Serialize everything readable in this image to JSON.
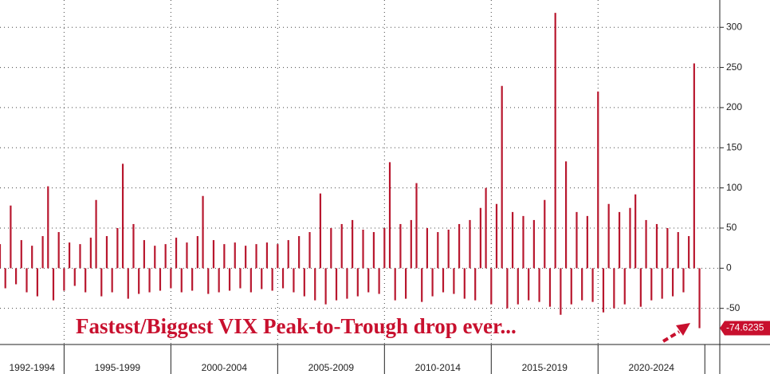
{
  "chart_data": {
    "type": "bar",
    "color": "#b8172e",
    "grid": true,
    "axis_side": "right",
    "annotation": "Fastest/Biggest VIX Peak-to-Trough drop ever...",
    "xlim": [
      1992,
      2025.7
    ],
    "ylim": [
      -95,
      334
    ],
    "yticks": [
      300,
      250,
      200,
      150,
      100,
      50,
      0,
      -50
    ],
    "periods": [
      {
        "label": "1992-1994",
        "start": 1992,
        "end": 1995
      },
      {
        "label": "1995-1999",
        "start": 1995,
        "end": 2000
      },
      {
        "label": "2000-2004",
        "start": 2000,
        "end": 2005
      },
      {
        "label": "2005-2009",
        "start": 2005,
        "end": 2010
      },
      {
        "label": "2010-2014",
        "start": 2010,
        "end": 2015
      },
      {
        "label": "2015-2019",
        "start": 2015,
        "end": 2020
      },
      {
        "label": "2020-2024",
        "start": 2020,
        "end": 2025
      }
    ],
    "x": [
      1992,
      1992.25,
      1992.5,
      1992.75,
      1993,
      1993.25,
      1993.5,
      1993.75,
      1994,
      1994.25,
      1994.5,
      1994.75,
      1995,
      1995.25,
      1995.5,
      1995.75,
      1996,
      1996.25,
      1996.5,
      1996.75,
      1997,
      1997.25,
      1997.5,
      1997.75,
      1998,
      1998.25,
      1998.5,
      1998.75,
      1999,
      1999.25,
      1999.5,
      1999.75,
      2000,
      2000.25,
      2000.5,
      2000.75,
      2001,
      2001.25,
      2001.5,
      2001.75,
      2002,
      2002.25,
      2002.5,
      2002.75,
      2003,
      2003.25,
      2003.5,
      2003.75,
      2004,
      2004.25,
      2004.5,
      2004.75,
      2005,
      2005.25,
      2005.5,
      2005.75,
      2006,
      2006.25,
      2006.5,
      2006.75,
      2007,
      2007.25,
      2007.5,
      2007.75,
      2008,
      2008.25,
      2008.5,
      2008.75,
      2009,
      2009.25,
      2009.5,
      2009.75,
      2010,
      2010.25,
      2010.5,
      2010.75,
      2011,
      2011.25,
      2011.5,
      2011.75,
      2012,
      2012.25,
      2012.5,
      2012.75,
      2013,
      2013.25,
      2013.5,
      2013.75,
      2014,
      2014.25,
      2014.5,
      2014.75,
      2015,
      2015.25,
      2015.5,
      2015.75,
      2016,
      2016.25,
      2016.5,
      2016.75,
      2017,
      2017.25,
      2017.5,
      2017.75,
      2018,
      2018.25,
      2018.5,
      2018.75,
      2019,
      2019.25,
      2019.5,
      2019.75,
      2020,
      2020.25,
      2020.5,
      2020.75,
      2021,
      2021.25,
      2021.5,
      2021.75,
      2022,
      2022.25,
      2022.5,
      2022.75,
      2023,
      2023.25,
      2023.5,
      2023.75,
      2024,
      2024.25,
      2024.5,
      2024.75
    ],
    "values": [
      30,
      -25,
      78,
      -20,
      35,
      -30,
      28,
      -35,
      40,
      102,
      -40,
      45,
      -28,
      32,
      -22,
      30,
      -30,
      38,
      85,
      -35,
      40,
      -30,
      50,
      130,
      -38,
      55,
      -32,
      35,
      -30,
      28,
      -28,
      30,
      -25,
      38,
      -30,
      32,
      -28,
      40,
      90,
      -32,
      35,
      -30,
      30,
      -28,
      32,
      -25,
      28,
      -30,
      30,
      -26,
      32,
      -28,
      30,
      -25,
      35,
      -30,
      40,
      -35,
      45,
      -40,
      93,
      -45,
      50,
      -40,
      55,
      -38,
      60,
      -35,
      48,
      -30,
      45,
      -32,
      50,
      132,
      -40,
      55,
      -38,
      60,
      106,
      -42,
      50,
      -35,
      45,
      -30,
      48,
      -32,
      55,
      -38,
      60,
      -40,
      75,
      100,
      -45,
      80,
      227,
      -50,
      70,
      -45,
      65,
      -40,
      60,
      -42,
      85,
      -48,
      318,
      -58,
      133,
      -45,
      70,
      -40,
      65,
      -42,
      220,
      -55,
      80,
      -50,
      70,
      -45,
      75,
      92,
      -48,
      60,
      -40,
      55,
      -38,
      50,
      -35,
      45,
      -30,
      40,
      255,
      -74.6235
    ]
  }
}
